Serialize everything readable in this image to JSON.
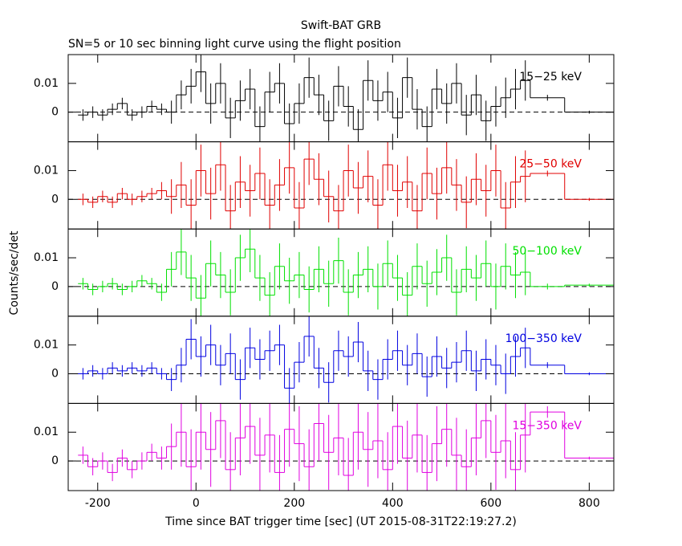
{
  "chart_data": {
    "type": "step",
    "title": "Swift-BAT GRB",
    "subtitle": "SN=5 or 10 sec binning light curve using the flight position",
    "xlabel": "Time since BAT trigger time [sec] (UT 2015-08-31T22:19:27.2)",
    "ylabel": "Counts/sec/det",
    "xlim": [
      -260,
      850
    ],
    "xticks": [
      -200,
      0,
      200,
      400,
      600,
      800
    ],
    "bins": [
      -240,
      -220,
      -200,
      -180,
      -160,
      -140,
      -120,
      -100,
      -80,
      -60,
      -40,
      -20,
      0,
      20,
      40,
      60,
      80,
      100,
      120,
      140,
      160,
      180,
      200,
      220,
      240,
      260,
      280,
      300,
      320,
      340,
      360,
      380,
      400,
      420,
      440,
      460,
      480,
      500,
      520,
      540,
      560,
      580,
      600,
      620,
      640,
      660,
      680,
      750,
      850
    ],
    "panels": [
      {
        "name": "15−25 keV",
        "color": "#000000",
        "ylim": [
          -0.0103,
          0.02
        ],
        "yticks": [
          0,
          0.01
        ],
        "values": [
          -0.001,
          0.0,
          -0.001,
          0.001,
          0.003,
          -0.001,
          0.0,
          0.002,
          0.001,
          0.0,
          0.006,
          0.009,
          0.014,
          0.003,
          0.01,
          -0.002,
          0.004,
          0.008,
          -0.005,
          0.007,
          0.01,
          -0.004,
          0.003,
          0.012,
          0.006,
          -0.003,
          0.009,
          0.002,
          -0.006,
          0.011,
          0.004,
          0.007,
          -0.002,
          0.012,
          0.001,
          -0.005,
          0.008,
          0.003,
          0.01,
          -0.001,
          0.006,
          -0.003,
          0.002,
          0.005,
          0.008,
          0.011,
          0.005,
          0.0
        ],
        "errors": [
          0.002,
          0.002,
          0.002,
          0.002,
          0.002,
          0.002,
          0.002,
          0.002,
          0.002,
          0.004,
          0.005,
          0.006,
          0.007,
          0.007,
          0.007,
          0.007,
          0.007,
          0.007,
          0.007,
          0.007,
          0.007,
          0.007,
          0.007,
          0.007,
          0.007,
          0.007,
          0.007,
          0.007,
          0.007,
          0.007,
          0.007,
          0.007,
          0.007,
          0.007,
          0.007,
          0.007,
          0.007,
          0.007,
          0.007,
          0.007,
          0.007,
          0.007,
          0.007,
          0.007,
          0.007,
          0.007,
          0.001,
          0.0005
        ]
      },
      {
        "name": "25−50 keV",
        "color": "#e00000",
        "ylim": [
          -0.0103,
          0.02
        ],
        "yticks": [
          0,
          0.01
        ],
        "values": [
          0.0,
          -0.001,
          0.001,
          -0.001,
          0.002,
          0.0,
          0.001,
          0.002,
          0.003,
          0.001,
          0.005,
          -0.002,
          0.01,
          0.002,
          0.012,
          -0.004,
          0.006,
          0.003,
          0.009,
          -0.002,
          0.005,
          0.011,
          -0.003,
          0.014,
          0.007,
          0.001,
          -0.004,
          0.01,
          0.004,
          0.008,
          -0.002,
          0.012,
          0.003,
          0.006,
          -0.004,
          0.009,
          0.002,
          0.011,
          0.005,
          -0.001,
          0.007,
          0.003,
          0.01,
          -0.003,
          0.006,
          0.008,
          0.009,
          0.0
        ],
        "errors": [
          0.002,
          0.002,
          0.002,
          0.002,
          0.002,
          0.002,
          0.002,
          0.002,
          0.003,
          0.006,
          0.008,
          0.009,
          0.009,
          0.009,
          0.009,
          0.009,
          0.009,
          0.009,
          0.009,
          0.009,
          0.009,
          0.009,
          0.009,
          0.009,
          0.009,
          0.009,
          0.009,
          0.009,
          0.009,
          0.009,
          0.009,
          0.009,
          0.009,
          0.009,
          0.009,
          0.009,
          0.009,
          0.009,
          0.009,
          0.009,
          0.009,
          0.009,
          0.009,
          0.009,
          0.009,
          0.009,
          0.001,
          0.0005
        ]
      },
      {
        "name": "50−100 keV",
        "color": "#00e000",
        "ylim": [
          -0.0103,
          0.02
        ],
        "yticks": [
          0,
          0.01
        ],
        "values": [
          0.001,
          -0.001,
          0.0,
          0.001,
          -0.001,
          0.0,
          0.002,
          0.001,
          -0.002,
          0.006,
          0.012,
          0.003,
          -0.004,
          0.008,
          0.004,
          -0.002,
          0.01,
          0.013,
          0.003,
          -0.003,
          0.007,
          0.002,
          0.004,
          -0.001,
          0.006,
          0.001,
          0.009,
          -0.002,
          0.004,
          0.006,
          0.0,
          0.008,
          0.003,
          -0.003,
          0.007,
          0.001,
          0.005,
          0.01,
          -0.002,
          0.006,
          0.003,
          0.008,
          0.0,
          0.007,
          0.004,
          0.005,
          0.0,
          0.0005
        ],
        "errors": [
          0.002,
          0.002,
          0.002,
          0.002,
          0.002,
          0.002,
          0.002,
          0.002,
          0.003,
          0.006,
          0.008,
          0.008,
          0.008,
          0.008,
          0.008,
          0.008,
          0.008,
          0.008,
          0.008,
          0.008,
          0.008,
          0.008,
          0.008,
          0.008,
          0.008,
          0.008,
          0.008,
          0.008,
          0.008,
          0.008,
          0.008,
          0.008,
          0.008,
          0.008,
          0.008,
          0.008,
          0.008,
          0.008,
          0.008,
          0.008,
          0.008,
          0.008,
          0.008,
          0.008,
          0.008,
          0.008,
          0.001,
          0.0005
        ]
      },
      {
        "name": "100−350 keV",
        "color": "#0000e0",
        "ylim": [
          -0.0103,
          0.02
        ],
        "yticks": [
          0,
          0.01
        ],
        "values": [
          0.0,
          0.001,
          0.0,
          0.002,
          0.001,
          0.002,
          0.001,
          0.002,
          0.0,
          -0.002,
          0.003,
          0.012,
          0.006,
          0.01,
          0.003,
          0.007,
          -0.002,
          0.009,
          0.005,
          0.008,
          0.01,
          -0.005,
          0.004,
          0.013,
          0.002,
          -0.003,
          0.008,
          0.006,
          0.011,
          0.001,
          -0.002,
          0.005,
          0.008,
          0.003,
          0.007,
          -0.001,
          0.006,
          0.002,
          0.004,
          0.008,
          0.001,
          0.005,
          0.003,
          0.0,
          0.006,
          0.009,
          0.003,
          0.0
        ],
        "errors": [
          0.002,
          0.002,
          0.002,
          0.002,
          0.002,
          0.002,
          0.002,
          0.002,
          0.002,
          0.004,
          0.006,
          0.007,
          0.007,
          0.007,
          0.007,
          0.007,
          0.007,
          0.007,
          0.007,
          0.007,
          0.007,
          0.007,
          0.007,
          0.007,
          0.007,
          0.007,
          0.007,
          0.007,
          0.007,
          0.007,
          0.007,
          0.007,
          0.007,
          0.007,
          0.007,
          0.007,
          0.007,
          0.007,
          0.007,
          0.007,
          0.007,
          0.007,
          0.007,
          0.007,
          0.007,
          0.007,
          0.001,
          0.0005
        ]
      },
      {
        "name": "15−350 keV",
        "color": "#e000e0",
        "ylim": [
          -0.0103,
          0.02
        ],
        "yticks": [
          0,
          0.01
        ],
        "values": [
          0.002,
          -0.002,
          0.0,
          -0.004,
          0.001,
          -0.003,
          0.0,
          0.003,
          0.001,
          0.005,
          0.01,
          -0.002,
          0.01,
          0.004,
          0.014,
          -0.003,
          0.008,
          0.012,
          0.002,
          0.009,
          -0.004,
          0.011,
          0.006,
          -0.002,
          0.013,
          0.003,
          0.008,
          -0.005,
          0.01,
          0.004,
          0.007,
          -0.003,
          0.012,
          0.001,
          0.009,
          -0.004,
          0.006,
          0.011,
          0.002,
          -0.002,
          0.008,
          0.014,
          0.003,
          0.007,
          -0.003,
          0.009,
          0.017,
          0.001
        ],
        "errors": [
          0.003,
          0.003,
          0.003,
          0.003,
          0.003,
          0.003,
          0.003,
          0.003,
          0.004,
          0.008,
          0.012,
          0.013,
          0.013,
          0.013,
          0.013,
          0.013,
          0.013,
          0.013,
          0.013,
          0.013,
          0.013,
          0.013,
          0.013,
          0.013,
          0.013,
          0.013,
          0.013,
          0.013,
          0.013,
          0.013,
          0.013,
          0.013,
          0.013,
          0.013,
          0.013,
          0.013,
          0.013,
          0.013,
          0.013,
          0.013,
          0.013,
          0.013,
          0.013,
          0.013,
          0.013,
          0.013,
          0.002,
          0.0005
        ]
      }
    ]
  }
}
